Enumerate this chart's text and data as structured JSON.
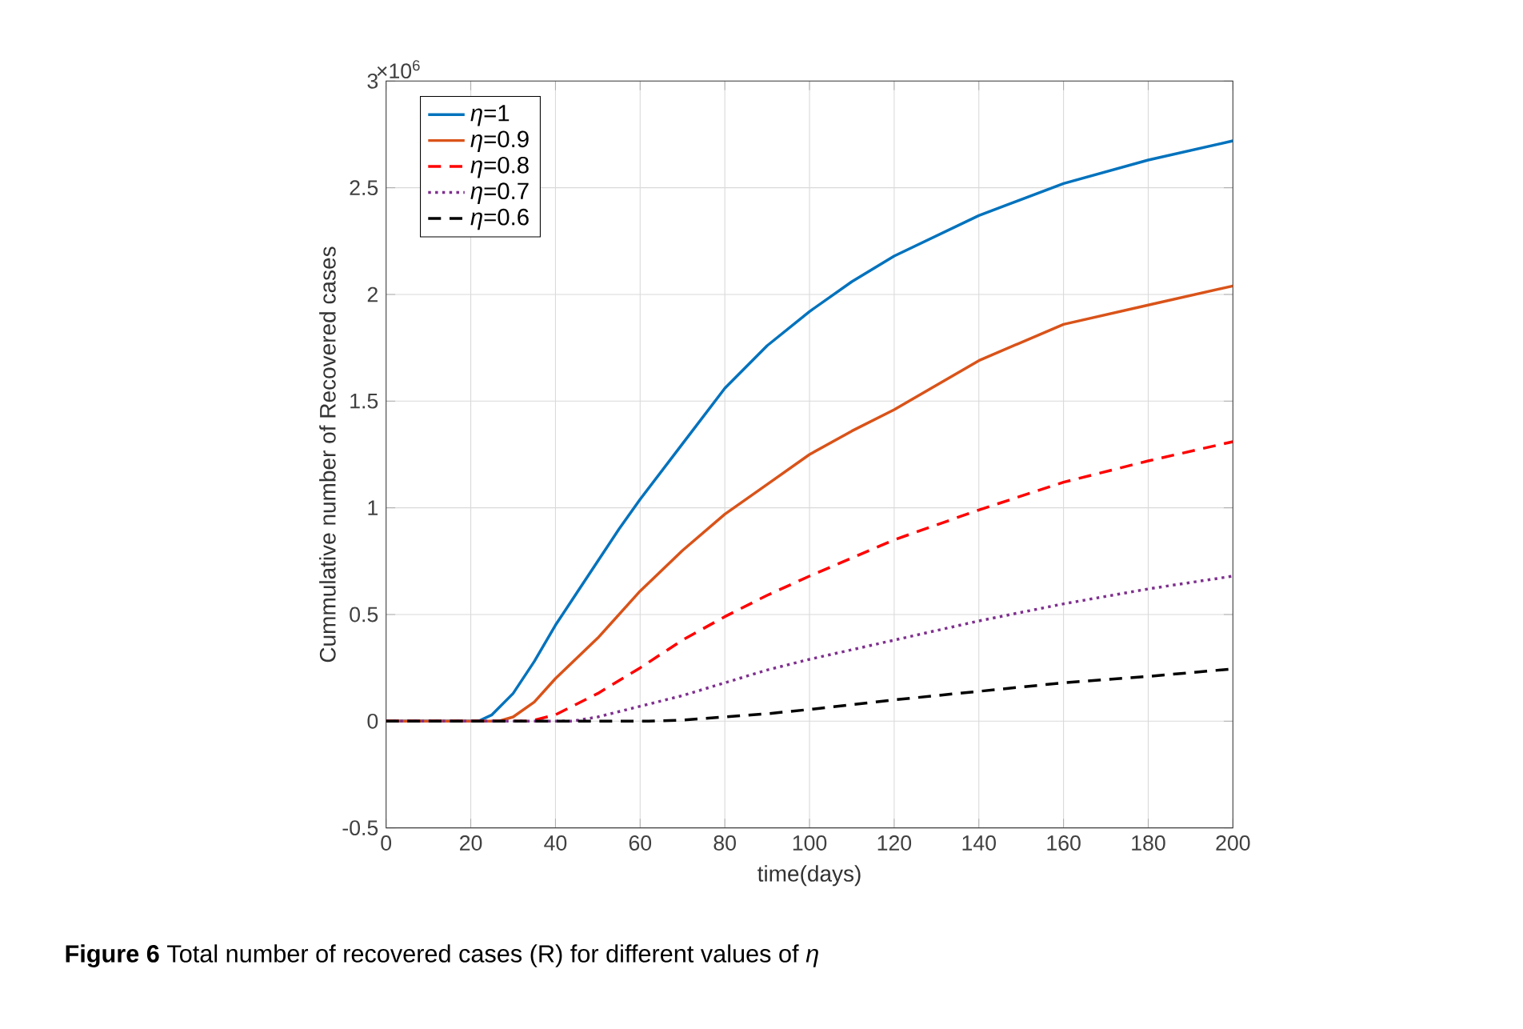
{
  "chart_data": {
    "type": "line",
    "xlabel": "time(days)",
    "ylabel": "Cummulative number of Recovered cases",
    "xlim": [
      0,
      200
    ],
    "ylim": [
      -0.5,
      3
    ],
    "xticks": [
      0,
      20,
      40,
      60,
      80,
      100,
      120,
      140,
      160,
      180,
      200
    ],
    "yticks": [
      -0.5,
      0,
      0.5,
      1,
      1.5,
      2,
      2.5,
      3
    ],
    "grid": true,
    "legend": "top left",
    "annotations": [
      "×10$^{6}$",
      "**Figure 6**  Total number of recovered cases (R) for different values of *η*"
    ],
    "series": [
      {
        "name": "*η*=1",
        "color": "#0072bd",
        "line_style": "solid",
        "x": [
          0,
          20,
          22,
          25,
          30,
          35,
          40,
          45,
          50,
          55,
          60,
          70,
          80,
          90,
          100,
          110,
          120,
          140,
          160,
          180,
          200
        ],
        "values": [
          0,
          0,
          0.002,
          0.03,
          0.13,
          0.28,
          0.45,
          0.6,
          0.75,
          0.9,
          1.04,
          1.3,
          1.56,
          1.76,
          1.92,
          2.06,
          2.18,
          2.37,
          2.52,
          2.63,
          2.72
        ]
      },
      {
        "name": "*η*=0.9",
        "color": "#d95319",
        "line_style": "solid",
        "x": [
          0,
          25,
          27,
          30,
          35,
          40,
          50,
          60,
          70,
          80,
          90,
          100,
          110,
          120,
          140,
          160,
          180,
          200
        ],
        "values": [
          0,
          0,
          0.002,
          0.02,
          0.09,
          0.2,
          0.39,
          0.61,
          0.8,
          0.97,
          1.11,
          1.25,
          1.36,
          1.46,
          1.69,
          1.86,
          1.95,
          2.04
        ]
      },
      {
        "name": "*η*=0.8",
        "color": "#ff0000",
        "line_style": "dashed",
        "x": [
          0,
          33,
          35,
          40,
          50,
          60,
          70,
          80,
          90,
          100,
          120,
          140,
          160,
          180,
          200
        ],
        "values": [
          0,
          0,
          0.005,
          0.03,
          0.13,
          0.25,
          0.38,
          0.49,
          0.59,
          0.68,
          0.85,
          0.99,
          1.12,
          1.22,
          1.31
        ]
      },
      {
        "name": "*η*=0.7",
        "color": "#7e2f8e",
        "line_style": "dotted",
        "x": [
          0,
          44,
          50,
          60,
          70,
          80,
          90,
          100,
          120,
          140,
          160,
          180,
          200
        ],
        "values": [
          0,
          0,
          0.02,
          0.07,
          0.12,
          0.18,
          0.24,
          0.29,
          0.38,
          0.47,
          0.55,
          0.62,
          0.68
        ]
      },
      {
        "name": "*η*=0.6",
        "color": "#000000",
        "line_style": "dashed",
        "x": [
          0,
          62,
          70,
          80,
          90,
          100,
          120,
          140,
          160,
          180,
          200
        ],
        "values": [
          0,
          0,
          0.005,
          0.02,
          0.035,
          0.055,
          0.1,
          0.14,
          0.18,
          0.21,
          0.245
        ]
      }
    ]
  }
}
